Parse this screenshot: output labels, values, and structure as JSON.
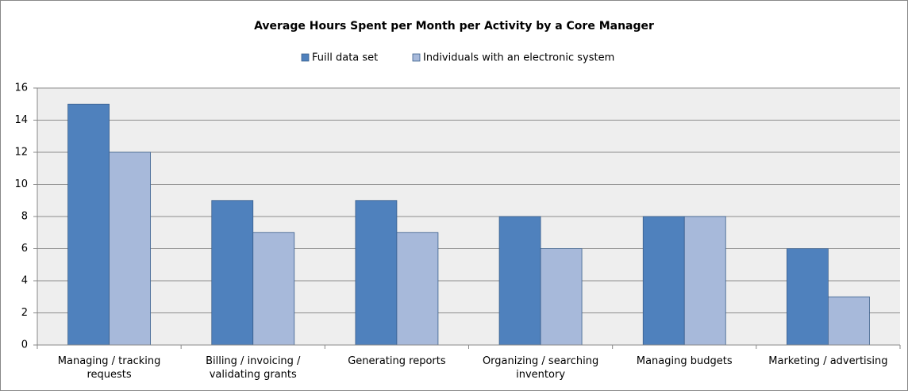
{
  "chart_data": {
    "type": "bar",
    "title": "Average Hours Spent per Month per Activity by a Core Manager",
    "categories": [
      "Managing / tracking requests",
      "Billing / invoicing / validating grants",
      "Generating reports",
      "Organizing / searching inventory",
      "Managing budgets",
      "Marketing / advertising"
    ],
    "series": [
      {
        "name": "Fuill data set",
        "color": "#4f81bd",
        "values": [
          15,
          9,
          9,
          8,
          8,
          6
        ]
      },
      {
        "name": "Individuals with an electronic system",
        "color": "#a7b9da",
        "values": [
          12,
          7,
          7,
          6,
          8,
          3
        ]
      }
    ],
    "ylim": [
      0,
      16
    ],
    "yticks": [
      0,
      2,
      4,
      6,
      8,
      10,
      12,
      14,
      16
    ],
    "grid": true,
    "legend": "top"
  }
}
